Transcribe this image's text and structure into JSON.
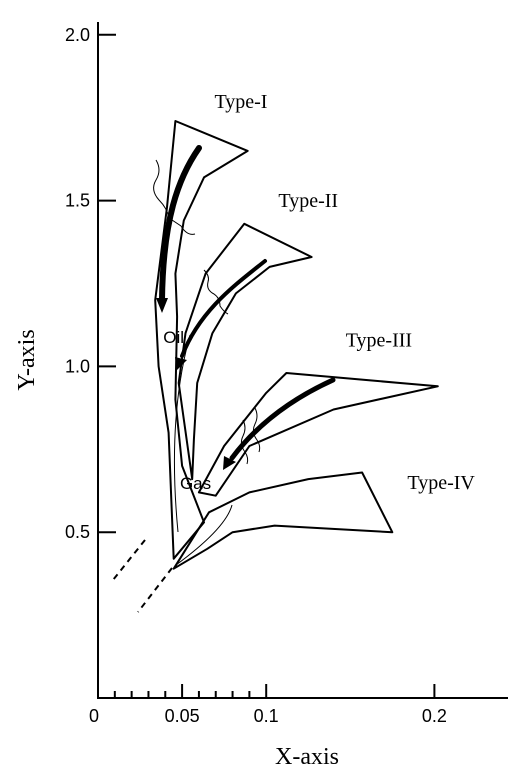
{
  "chart_data": {
    "type": "diagram",
    "xlabel": "X-axis",
    "ylabel": "Y-axis",
    "xlim": [
      0,
      0.25
    ],
    "ylim": [
      0,
      2.1
    ],
    "x_ticks": [
      {
        "value": 0,
        "label": "0"
      },
      {
        "value": 0.05,
        "label": "0.05"
      },
      {
        "value": 0.1,
        "label": "0.1"
      },
      {
        "value": 0.2,
        "label": "0.2"
      }
    ],
    "x_minor_ticks": [
      0.01,
      0.02,
      0.03,
      0.04,
      0.06,
      0.07,
      0.08,
      0.09
    ],
    "y_ticks": [
      {
        "value": 0.5,
        "label": "0.5"
      },
      {
        "value": 1.0,
        "label": "1.0"
      },
      {
        "value": 1.5,
        "label": "1.5"
      },
      {
        "value": 2.0,
        "label": "2.0"
      }
    ],
    "regions": [
      {
        "name": "Type-I",
        "label_pos": [
          0.085,
          1.78
        ],
        "outline": [
          [
            0.045,
            0.42
          ],
          [
            0.042,
            0.8
          ],
          [
            0.036,
            1.0
          ],
          [
            0.034,
            1.2
          ],
          [
            0.041,
            1.48
          ],
          [
            0.046,
            1.74
          ],
          [
            0.089,
            1.65
          ],
          [
            0.063,
            1.57
          ],
          [
            0.051,
            1.44
          ],
          [
            0.046,
            1.28
          ],
          [
            0.047,
            1.15
          ],
          [
            0.046,
            0.9
          ],
          [
            0.05,
            0.7
          ],
          [
            0.063,
            0.53
          ]
        ]
      },
      {
        "name": "Type-II",
        "label_pos": [
          0.125,
          1.48
        ],
        "outline": [
          [
            0.048,
            0.95
          ],
          [
            0.052,
            1.1
          ],
          [
            0.064,
            1.28
          ],
          [
            0.087,
            1.43
          ],
          [
            0.127,
            1.33
          ],
          [
            0.102,
            1.3
          ],
          [
            0.082,
            1.22
          ],
          [
            0.068,
            1.1
          ],
          [
            0.059,
            0.95
          ],
          [
            0.057,
            0.78
          ],
          [
            0.056,
            0.66
          ]
        ]
      },
      {
        "name": "Type-III",
        "label_pos": [
          0.167,
          1.06
        ],
        "outline": [
          [
            0.06,
            0.62
          ],
          [
            0.075,
            0.76
          ],
          [
            0.1,
            0.92
          ],
          [
            0.112,
            0.98
          ],
          [
            0.202,
            0.94
          ],
          [
            0.14,
            0.87
          ],
          [
            0.09,
            0.76
          ],
          [
            0.07,
            0.61
          ]
        ]
      },
      {
        "name": "Type-IV",
        "label_pos": [
          0.204,
          0.63
        ],
        "outline": [
          [
            0.066,
            0.56
          ],
          [
            0.09,
            0.62
          ],
          [
            0.125,
            0.66
          ],
          [
            0.157,
            0.68
          ],
          [
            0.175,
            0.5
          ],
          [
            0.105,
            0.52
          ],
          [
            0.08,
            0.5
          ],
          [
            0.065,
            0.45
          ],
          [
            0.045,
            0.39
          ]
        ]
      }
    ],
    "zone_labels": [
      {
        "text": "Oil",
        "pos": [
          0.045,
          1.07
        ]
      },
      {
        "text": "Gas",
        "pos": [
          0.058,
          0.63
        ]
      }
    ]
  }
}
